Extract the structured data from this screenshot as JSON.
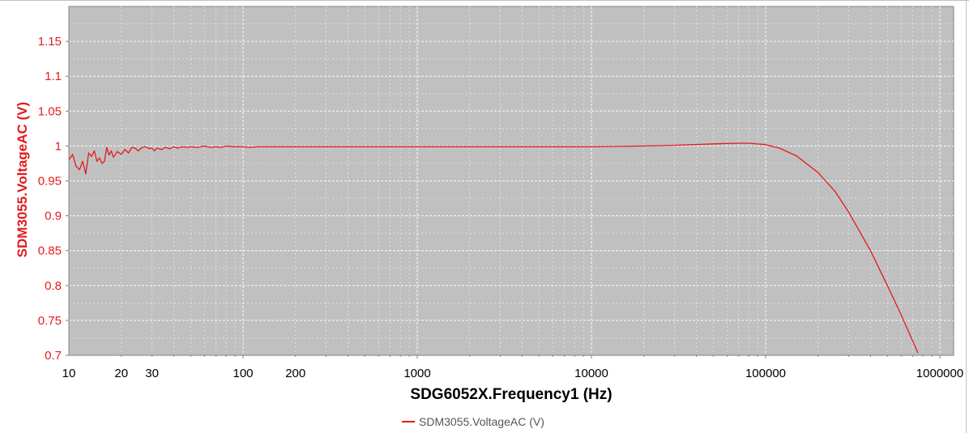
{
  "chart_data": {
    "type": "line",
    "title": "",
    "xlabel": "SDG6052X.Frequency1 (Hz)",
    "ylabel": "SDM3055.VoltageAC (V)",
    "x_scale": "log",
    "xlim": [
      10,
      1500000
    ],
    "ylim": [
      0.7,
      1.2
    ],
    "grid": true,
    "legend_position": "bottom-center",
    "colors": {
      "plot_background": "#c0c0c0",
      "grid": "#ffffff",
      "series": "#e41a1c",
      "axis_text": "#e41a1c",
      "x_axis_title": "#000000"
    },
    "x_ticks": [
      {
        "value": 10,
        "label": "10"
      },
      {
        "value": 20,
        "label": "20"
      },
      {
        "value": 30,
        "label": "30"
      },
      {
        "value": 100,
        "label": "100"
      },
      {
        "value": 200,
        "label": "200"
      },
      {
        "value": 1000,
        "label": "1000"
      },
      {
        "value": 10000,
        "label": "10000"
      },
      {
        "value": 100000,
        "label": "100000"
      },
      {
        "value": 1000000,
        "label": "1000000"
      }
    ],
    "y_ticks": [
      {
        "value": 0.7,
        "label": "0.7"
      },
      {
        "value": 0.75,
        "label": "0.75"
      },
      {
        "value": 0.8,
        "label": "0.8"
      },
      {
        "value": 0.85,
        "label": "0.85"
      },
      {
        "value": 0.9,
        "label": "0.9"
      },
      {
        "value": 0.95,
        "label": "0.95"
      },
      {
        "value": 1.0,
        "label": "1"
      },
      {
        "value": 1.05,
        "label": "1.05"
      },
      {
        "value": 1.1,
        "label": "1.1"
      },
      {
        "value": 1.15,
        "label": "1.15"
      }
    ],
    "series": [
      {
        "name": "SDM3055.VoltageAC (V)",
        "color": "#e41a1c",
        "x": [
          10,
          10.5,
          11,
          11.5,
          12,
          12.5,
          13,
          13.5,
          14,
          14.5,
          15,
          15.5,
          16,
          16.5,
          17,
          17.5,
          18,
          18.5,
          19,
          20,
          21,
          22,
          23,
          24,
          25,
          26,
          27,
          28,
          29,
          30,
          31,
          32,
          34,
          36,
          38,
          40,
          42,
          45,
          48,
          50,
          55,
          60,
          65,
          70,
          75,
          80,
          90,
          100,
          110,
          120,
          140,
          160,
          200,
          250,
          300,
          400,
          500,
          700,
          1000,
          2000,
          5000,
          10000,
          20000,
          30000,
          50000,
          70000,
          80000,
          100000,
          120000,
          150000,
          200000,
          250000,
          300000,
          400000,
          500000,
          600000,
          700000,
          750000
        ],
        "y": [
          0.98,
          0.988,
          0.971,
          0.966,
          0.978,
          0.96,
          0.99,
          0.985,
          0.993,
          0.978,
          0.983,
          0.975,
          0.978,
          0.998,
          0.987,
          0.993,
          0.984,
          0.988,
          0.992,
          0.988,
          0.995,
          0.99,
          0.998,
          0.997,
          0.993,
          0.997,
          0.999,
          0.998,
          0.996,
          0.997,
          0.993,
          0.997,
          0.995,
          0.998,
          0.996,
          0.999,
          0.997,
          0.999,
          0.998,
          0.999,
          0.998,
          1.0,
          0.998,
          0.999,
          0.998,
          1.0,
          0.999,
          0.999,
          0.998,
          0.999,
          0.999,
          0.999,
          0.999,
          0.999,
          0.999,
          0.999,
          0.999,
          0.999,
          0.999,
          0.999,
          0.999,
          0.999,
          1.0,
          1.001,
          1.003,
          1.004,
          1.004,
          1.002,
          0.997,
          0.986,
          0.962,
          0.935,
          0.905,
          0.85,
          0.8,
          0.758,
          0.72,
          0.703
        ]
      }
    ]
  }
}
